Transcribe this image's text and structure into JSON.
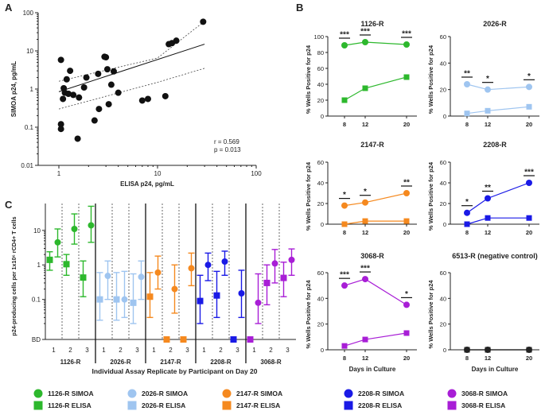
{
  "panel_labels": [
    "A",
    "B",
    "C"
  ],
  "chart_data": [
    {
      "panel": "A",
      "type": "scatter",
      "xlabel": "ELISA p24, pg/mL",
      "ylabel": "SIMOA p24, pg/mL",
      "xscale": "log",
      "yscale": "log",
      "xlim": [
        1,
        100
      ],
      "ylim": [
        0.01,
        100
      ],
      "xticks": [
        "1",
        "10",
        "100"
      ],
      "yticks": [
        "0.01",
        "0.1",
        "1",
        "10",
        "100"
      ],
      "points": [
        [
          1.05,
          5.8
        ],
        [
          1.05,
          0.12
        ],
        [
          1.05,
          0.09
        ],
        [
          1.1,
          0.55
        ],
        [
          1.12,
          1.05
        ],
        [
          1.15,
          0.8
        ],
        [
          1.2,
          1.8
        ],
        [
          1.25,
          0.75
        ],
        [
          1.3,
          3.0
        ],
        [
          1.4,
          0.7
        ],
        [
          1.55,
          0.05
        ],
        [
          1.6,
          0.6
        ],
        [
          1.8,
          1.1
        ],
        [
          1.9,
          2.0
        ],
        [
          2.3,
          0.15
        ],
        [
          2.5,
          2.5
        ],
        [
          2.55,
          0.3
        ],
        [
          2.9,
          7.0
        ],
        [
          3.0,
          6.8
        ],
        [
          3.1,
          3.3
        ],
        [
          3.2,
          0.4
        ],
        [
          3.4,
          1.3
        ],
        [
          3.6,
          2.9
        ],
        [
          4.0,
          0.8
        ],
        [
          7.0,
          0.5
        ],
        [
          8.0,
          0.55
        ],
        [
          12.0,
          0.65
        ],
        [
          13.0,
          15.0
        ],
        [
          14.0,
          16.0
        ],
        [
          15.5,
          18.5
        ],
        [
          29.0,
          58.0
        ]
      ],
      "regression": {
        "x": [
          1,
          30
        ],
        "y": [
          0.85,
          15
        ]
      },
      "ci_upper": [
        [
          1,
          1.6
        ],
        [
          10,
          6.5
        ],
        [
          30,
          60
        ]
      ],
      "ci_lower": [
        [
          1,
          0.3
        ],
        [
          10,
          1.5
        ],
        [
          30,
          3.5
        ]
      ],
      "annotations": [
        "r = 0.569",
        "p = 0.013"
      ]
    },
    {
      "panel": "B",
      "type": "line",
      "x": [
        8,
        12,
        20
      ],
      "xlabel": "Days in Culture",
      "ylabel": "% Wells Positive for p24",
      "series_legend": [
        "SIMOA (circles)",
        "ELISA (squares)"
      ],
      "subplots": [
        {
          "title": "1126-R",
          "color": "#2db82d",
          "ylim": [
            0,
            100
          ],
          "yticks": [
            "0",
            "20",
            "40",
            "60",
            "80",
            "100"
          ],
          "simoa": [
            89,
            93,
            90
          ],
          "elisa": [
            20,
            35,
            49
          ],
          "significance": [
            "***",
            "***",
            "***"
          ],
          "show_xlabel": false
        },
        {
          "title": "2026-R",
          "color": "#9fc5f0",
          "ylim": [
            0,
            60
          ],
          "yticks": [
            "0",
            "20",
            "40",
            "60"
          ],
          "simoa": [
            24,
            20,
            22
          ],
          "elisa": [
            2,
            4,
            7
          ],
          "significance": [
            "**",
            "*",
            "*"
          ],
          "show_xlabel": false
        },
        {
          "title": "2147-R",
          "color": "#f5891f",
          "ylim": [
            0,
            60
          ],
          "yticks": [
            "0",
            "20",
            "40",
            "60"
          ],
          "simoa": [
            18,
            21,
            30
          ],
          "elisa": [
            0,
            3,
            3
          ],
          "significance": [
            "*",
            "*",
            "**"
          ],
          "show_xlabel": false
        },
        {
          "title": "2208-R",
          "color": "#1a1ae6",
          "ylim": [
            0,
            60
          ],
          "yticks": [
            "0",
            "20",
            "40",
            "60"
          ],
          "simoa": [
            11,
            25,
            40
          ],
          "elisa": [
            0,
            6,
            6
          ],
          "significance": [
            "*",
            "**",
            "***"
          ],
          "show_xlabel": false
        },
        {
          "title": "3068-R",
          "color": "#a81ed6",
          "ylim": [
            0,
            60
          ],
          "yticks": [
            "0",
            "20",
            "40",
            "60"
          ],
          "simoa": [
            50,
            55,
            35
          ],
          "elisa": [
            3,
            8,
            13
          ],
          "significance": [
            "***",
            "***",
            "*"
          ],
          "show_xlabel": true
        },
        {
          "title": "6513-R (negative control)",
          "color": "#222222",
          "ylim": [
            0,
            60
          ],
          "yticks": [
            "0",
            "20",
            "40",
            "60"
          ],
          "simoa": [
            0,
            0,
            0
          ],
          "elisa": [
            0,
            0,
            0
          ],
          "significance": [
            "",
            "",
            ""
          ],
          "show_xlabel": true
        }
      ]
    },
    {
      "panel": "C",
      "type": "scatter",
      "ylabel": "p24-producing cells per 1x10⁶ rCD4+ T cells",
      "xlabel": "Individual Assay Replicate by Participant on Day 20",
      "yscale": "log",
      "yticks": [
        "10",
        "1",
        "0.1",
        "BD"
      ],
      "replicate_labels": [
        "1",
        "2",
        "3"
      ],
      "groups": [
        {
          "name": "1126-R",
          "color": "#2db82d",
          "simoa": [
            {
              "v": 4.5,
              "lo": 1.7,
              "hi": 11
            },
            {
              "v": 11,
              "lo": 4,
              "hi": 30
            },
            {
              "v": 14,
              "lo": 4.5,
              "hi": 50
            }
          ],
          "elisa": [
            {
              "v": 1.4,
              "lo": 0.7,
              "hi": 2.4
            },
            {
              "v": 1.05,
              "lo": 0.5,
              "hi": 2.0
            },
            {
              "v": 0.43,
              "lo": 0.12,
              "hi": 1.3
            }
          ]
        },
        {
          "name": "2026-R",
          "color": "#9fc5f0",
          "simoa": [
            {
              "v": 0.48,
              "lo": 0.1,
              "hi": 1.3
            },
            {
              "v": 0.1,
              "lo": 0.03,
              "hi": 0.65
            },
            {
              "v": 0.45,
              "lo": 0.1,
              "hi": 1.3
            }
          ],
          "elisa": [
            {
              "v": 0.1,
              "lo": 0.025,
              "hi": 0.6
            },
            {
              "v": 0.1,
              "lo": 0.025,
              "hi": 0.6
            },
            {
              "v": 0.08,
              "lo": 0.02,
              "hi": 0.55
            }
          ]
        },
        {
          "name": "2147-R",
          "color": "#f5891f",
          "simoa": [
            {
              "v": 0.6,
              "lo": 0.2,
              "hi": 1.8
            },
            {
              "v": 0.2,
              "lo": 0.04,
              "hi": 1.0
            },
            {
              "v": 0.8,
              "lo": 0.25,
              "hi": 2.2
            }
          ],
          "elisa": [
            {
              "v": 0.12,
              "lo": 0.03,
              "hi": 0.6
            },
            {
              "v": "BD",
              "lo": null,
              "hi": null
            },
            {
              "v": "BD",
              "lo": null,
              "hi": null
            }
          ]
        },
        {
          "name": "2208-R",
          "color": "#1a1ae6",
          "simoa": [
            {
              "v": 1.0,
              "lo": 0.35,
              "hi": 2.2
            },
            {
              "v": 1.25,
              "lo": 0.5,
              "hi": 2.5
            },
            {
              "v": 0.15,
              "lo": 0.03,
              "hi": 0.7
            }
          ],
          "elisa": [
            {
              "v": 0.09,
              "lo": 0.02,
              "hi": 0.5
            },
            {
              "v": 0.13,
              "lo": 0.03,
              "hi": 0.65
            },
            {
              "v": "BD",
              "lo": null,
              "hi": null
            }
          ]
        },
        {
          "name": "3068-R",
          "color": "#a81ed6",
          "simoa": [
            {
              "v": 0.08,
              "lo": 0.02,
              "hi": 0.55
            },
            {
              "v": 1.1,
              "lo": 0.3,
              "hi": 2.8
            },
            {
              "v": 1.4,
              "lo": 0.5,
              "hi": 2.9
            }
          ],
          "elisa": [
            {
              "v": "BD",
              "lo": null,
              "hi": null
            },
            {
              "v": 0.3,
              "lo": 0.07,
              "hi": 1.0
            },
            {
              "v": 0.42,
              "lo": 0.12,
              "hi": 1.2
            }
          ]
        }
      ]
    }
  ],
  "legend": {
    "items": [
      {
        "label": "1126-R SIMOA",
        "color": "#2db82d",
        "shape": "circle"
      },
      {
        "label": "1126-R ELISA",
        "color": "#2db82d",
        "shape": "square"
      },
      {
        "label": "2026-R SIMOA",
        "color": "#9fc5f0",
        "shape": "circle"
      },
      {
        "label": "2026-R ELISA",
        "color": "#9fc5f0",
        "shape": "square"
      },
      {
        "label": "2147-R SIMOA",
        "color": "#f5891f",
        "shape": "circle"
      },
      {
        "label": "2147-R ELISA",
        "color": "#f5891f",
        "shape": "square"
      },
      {
        "label": "2208-R SIMOA",
        "color": "#1a1ae6",
        "shape": "circle"
      },
      {
        "label": "2208-R ELISA",
        "color": "#1a1ae6",
        "shape": "square"
      },
      {
        "label": "3068-R SIMOA",
        "color": "#a81ed6",
        "shape": "circle"
      },
      {
        "label": "3068-R ELISA",
        "color": "#a81ed6",
        "shape": "square"
      }
    ]
  }
}
